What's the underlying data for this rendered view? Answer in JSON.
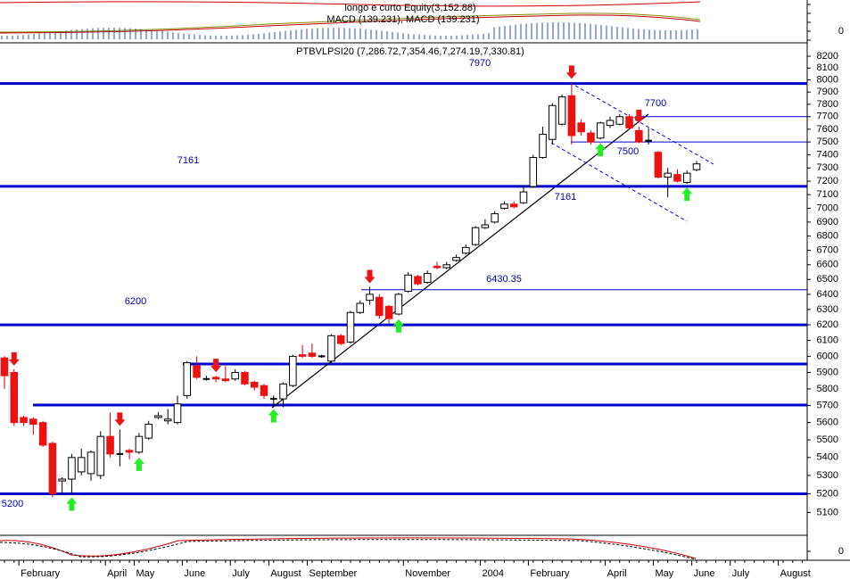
{
  "chart_data": {
    "type": "candlestick",
    "indicator_title": "longo e curto Equity(3,152.88)",
    "macd_title": "MACD (139.231), MACD (139.231)",
    "title": "PTBVLPSI20 (7,286.72,7,354.46,7,274.19,7,330.81)",
    "log_scale": true,
    "categories": [
      null,
      null,
      "February",
      null,
      null,
      null,
      null,
      null,
      null,
      null,
      null,
      "April",
      null,
      null,
      "May",
      null,
      null,
      null,
      null,
      "June",
      null,
      null,
      null,
      null,
      "July",
      null,
      null,
      null,
      "August",
      null,
      null,
      null,
      "September",
      null,
      null,
      null,
      null,
      null,
      null,
      null,
      null,
      null,
      "November",
      null,
      null,
      null,
      null,
      null,
      null,
      null,
      "2004",
      null,
      null,
      null,
      null,
      "February",
      null,
      null,
      null,
      null,
      null,
      null,
      null,
      "April",
      null,
      null,
      null,
      null,
      "May",
      null,
      null,
      null,
      "June",
      null,
      null,
      null,
      "July",
      null,
      null,
      null,
      null,
      "August",
      null,
      null
    ],
    "open": [
      5990,
      5900,
      5630,
      5620,
      5600,
      5480,
      5270,
      5280,
      5320,
      5310,
      5300,
      5520,
      5420,
      5440,
      5430,
      5510,
      5630,
      5610,
      5600,
      5760,
      5940,
      5860,
      5870,
      5860,
      5860,
      5900,
      5840,
      5820,
      5740,
      5740,
      5820,
      6010,
      6020,
      6000,
      5970,
      6130,
      6090,
      6280,
      6360,
      6380,
      6320,
      6270,
      6420,
      6520,
      6480,
      6590,
      6580,
      6630,
      6680,
      6740,
      6860,
      6900,
      7000,
      7030,
      7040,
      7160,
      7380,
      7520,
      7640,
      7870,
      7650,
      7570,
      7530,
      7630,
      7640,
      7700,
      7590,
      7510,
      7420,
      7230,
      7250,
      7190,
      7286.72,
      null,
      null,
      null,
      null,
      null,
      null,
      null,
      null,
      null,
      null,
      null
    ],
    "high": [
      6000,
      5920,
      5640,
      5630,
      5610,
      5490,
      5290,
      5420,
      5450,
      5440,
      5550,
      5660,
      5560,
      5450,
      5540,
      5610,
      5660,
      5680,
      5760,
      5970,
      6000,
      5880,
      5880,
      5940,
      5920,
      5910,
      5850,
      5830,
      5760,
      5840,
      6010,
      6070,
      6080,
      6010,
      6140,
      6140,
      6290,
      6360,
      6450,
      6400,
      6330,
      6410,
      6550,
      6530,
      6560,
      6620,
      6620,
      6670,
      6740,
      6870,
      6920,
      6980,
      7050,
      7050,
      7170,
      7400,
      7620,
      7810,
      7880,
      7980,
      7680,
      7590,
      7660,
      7700,
      7720,
      7720,
      7620,
      7610,
      7430,
      7300,
      7290,
      7280,
      7354.46,
      null,
      null,
      null,
      null,
      null,
      null,
      null,
      null,
      null,
      null,
      null
    ],
    "low": [
      5800,
      5580,
      5580,
      5530,
      5460,
      5180,
      5200,
      5200,
      5300,
      5270,
      5280,
      5400,
      5350,
      5390,
      5420,
      5500,
      5620,
      5590,
      5590,
      5740,
      5860,
      5850,
      5840,
      5840,
      5850,
      5820,
      5790,
      5740,
      5700,
      5690,
      5810,
      5990,
      5990,
      5990,
      5960,
      6070,
      6080,
      6270,
      6330,
      6240,
      6210,
      6260,
      6410,
      6460,
      6470,
      6570,
      6570,
      6620,
      6670,
      6730,
      6850,
      6890,
      6990,
      7000,
      7030,
      7150,
      7370,
      7480,
      7630,
      7480,
      7550,
      7480,
      7520,
      7610,
      7630,
      7600,
      7490,
      7480,
      7220,
      7080,
      7190,
      7180,
      7274.19,
      null,
      null,
      null,
      null,
      null,
      null,
      null,
      null,
      null,
      null,
      null
    ],
    "close": [
      5880,
      5600,
      5600,
      5590,
      5470,
      5200,
      5280,
      5400,
      5400,
      5430,
      5520,
      5420,
      5420,
      5430,
      5520,
      5590,
      5640,
      5620,
      5710,
      5960,
      5870,
      5860,
      5860,
      5850,
      5900,
      5830,
      5810,
      5760,
      5740,
      5830,
      6000,
      6000,
      6000,
      6000,
      6130,
      6080,
      6280,
      6340,
      6400,
      6260,
      6240,
      6400,
      6530,
      6470,
      6540,
      6580,
      6600,
      6650,
      6720,
      6860,
      6880,
      6960,
      7030,
      7010,
      7120,
      7380,
      7560,
      7790,
      7860,
      7550,
      7580,
      7500,
      7650,
      7670,
      7700,
      7610,
      7500,
      7510,
      7230,
      7260,
      7200,
      7260,
      7330.81,
      null,
      null,
      null,
      null,
      null,
      null,
      null,
      null,
      null,
      null,
      null
    ],
    "up_color": "#ffffff",
    "down_color": "#ee1111",
    "level_color": "#0000cc",
    "levels": [
      7970,
      7700,
      7500,
      7161,
      6430.35,
      6200,
      5200
    ],
    "ylim": [
      4980,
      8300
    ],
    "yticks": [
      5100,
      5200,
      5300,
      5400,
      5500,
      5600,
      5700,
      5800,
      5900,
      6000,
      6100,
      6200,
      6300,
      6400,
      6500,
      6600,
      6700,
      6800,
      6900,
      7000,
      7100,
      7200,
      7300,
      7400,
      7500,
      7600,
      7700,
      7800,
      7900,
      8000,
      8100,
      8200
    ],
    "macd_ticks": [
      0
    ],
    "osc_ticks": [
      0
    ]
  }
}
